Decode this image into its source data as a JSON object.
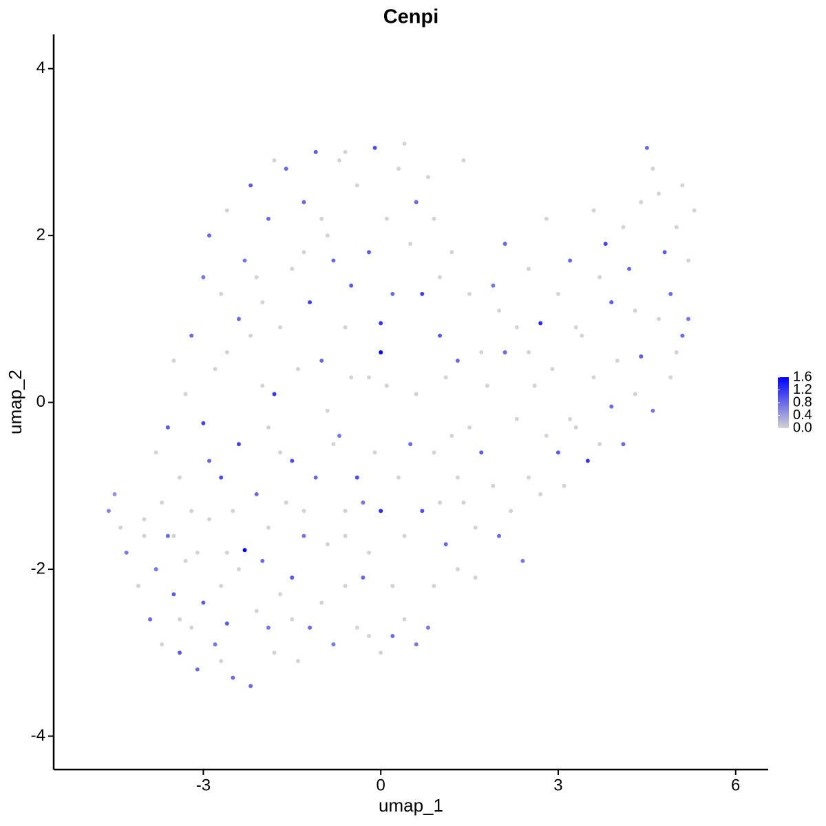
{
  "chart_data": {
    "type": "scatter",
    "title": "Cenpi",
    "x_label": "umap_1",
    "y_label": "umap_2",
    "x": [
      -4.6,
      -4.5,
      -4.4,
      -4.3,
      -4.1,
      -4.0,
      -3.9,
      -3.8,
      -3.7,
      -3.6,
      -3.5,
      -3.4,
      -3.3,
      -3.2,
      -3.1,
      -3.0,
      -2.9,
      -2.8,
      -2.7,
      -2.6,
      -2.5,
      -2.4,
      -2.3,
      -2.2,
      -2.1,
      -2.0,
      -1.9,
      -1.8,
      -1.7,
      -1.5,
      -1.4,
      -1.3,
      -1.2,
      -1.0,
      -0.8,
      -0.6,
      -0.4,
      -0.3,
      -0.2,
      0.0,
      0.2,
      0.4,
      0.6,
      0.8,
      0.9,
      1.1,
      1.3,
      1.6,
      2.0,
      2.4,
      -4.0,
      -3.7,
      -3.6,
      -3.4,
      -3.3,
      -3.0,
      -2.9,
      -2.8,
      -2.7,
      -2.5,
      -2.4,
      -2.2,
      -2.1,
      -2.0,
      -1.8,
      -1.7,
      -1.5,
      -1.4,
      -1.3,
      -1.1,
      -1.0,
      -0.9,
      -0.7,
      -0.6,
      -0.5,
      -0.4,
      -0.3,
      -0.1,
      0.0,
      0.1,
      0.3,
      0.5,
      0.7,
      0.9,
      1.1,
      1.3,
      1.5,
      1.7,
      1.9,
      2.1,
      2.3,
      2.5,
      2.8,
      3.0,
      3.1,
      3.3,
      3.5,
      3.7,
      3.9,
      4.1,
      4.3,
      4.6,
      4.9,
      5.1,
      5.2,
      -3.2,
      -3.0,
      -2.9,
      -2.7,
      -2.6,
      -2.4,
      -2.3,
      -2.2,
      -2.0,
      -1.9,
      -1.7,
      -1.6,
      -1.5,
      -1.3,
      -1.2,
      -1.1,
      -0.9,
      -0.8,
      -0.7,
      -0.5,
      -0.4,
      -0.2,
      -0.1,
      0.0,
      0.0,
      0.1,
      0.2,
      0.3,
      0.5,
      0.6,
      0.7,
      0.8,
      1.0,
      1.2,
      1.3,
      1.5,
      1.7,
      1.9,
      2.1,
      2.3,
      2.5,
      2.7,
      2.8,
      3.0,
      3.2,
      3.4,
      3.6,
      3.8,
      3.9,
      4.1,
      4.2,
      4.4,
      4.5,
      4.6,
      4.7,
      4.8,
      4.9,
      5.0,
      5.1,
      5.2,
      5.3,
      5.0,
      4.4,
      4.7,
      3.6,
      2.6,
      1.4,
      0.4,
      -0.6,
      -1.8,
      -2.6,
      -3.5,
      -3.8,
      -3.5,
      -3.1,
      -2.6,
      -1.9,
      -1.6,
      -0.9,
      -0.2,
      0.4,
      1.0,
      1.6,
      2.2,
      0.6,
      -0.2,
      1.8,
      2.9,
      3.3,
      2.0,
      1.0,
      -0.6,
      -1.3,
      -2.1,
      -1.0,
      0.9,
      3.7,
      4.3,
      4.0,
      3.2,
      2.5,
      1.2,
      -0.8,
      -1.9,
      -3.2,
      -2.7,
      -3.4,
      -1.5,
      0.2,
      -0.6,
      1.4,
      2.7
    ],
    "values": [
      -1.3,
      -1.1,
      -1.5,
      -1.8,
      -2.2,
      -1.6,
      -2.6,
      -2.0,
      -2.9,
      -1.6,
      -2.3,
      -3.0,
      -1.9,
      -2.7,
      -3.2,
      -2.4,
      -1.4,
      -2.9,
      -2.2,
      -2.65,
      -3.3,
      -2.0,
      -1.77,
      -3.4,
      -2.5,
      -1.9,
      -2.7,
      -3.0,
      -2.3,
      -2.1,
      -3.1,
      -1.6,
      -2.7,
      -2.4,
      -2.9,
      -2.2,
      -2.7,
      -2.1,
      -2.8,
      -3.0,
      -2.8,
      -2.6,
      -2.9,
      -2.7,
      -2.2,
      -1.7,
      -2.0,
      -2.1,
      -1.6,
      -1.9,
      -1.4,
      -1.2,
      -0.3,
      -0.9,
      0.1,
      -0.25,
      -0.7,
      0.4,
      -0.9,
      -1.3,
      -0.5,
      0.8,
      -1.1,
      0.2,
      0.1,
      -0.6,
      -0.7,
      0.4,
      -1.3,
      -0.9,
      0.5,
      -0.1,
      -0.4,
      -1.3,
      0.3,
      -0.9,
      -1.2,
      -0.6,
      -1.3,
      0.2,
      -0.9,
      -0.5,
      -1.3,
      -0.6,
      0.3,
      -0.9,
      -0.3,
      -0.6,
      -1.0,
      0.6,
      -0.2,
      -0.9,
      -0.4,
      -0.6,
      -1.0,
      -0.3,
      -0.7,
      -0.5,
      -0.05,
      -0.5,
      0.1,
      -0.1,
      0.3,
      0.8,
      1.0,
      0.8,
      1.5,
      2.0,
      1.3,
      2.3,
      1.0,
      1.7,
      2.6,
      1.2,
      2.2,
      0.9,
      2.8,
      1.6,
      2.4,
      1.2,
      3.0,
      2.0,
      1.7,
      2.9,
      1.4,
      2.6,
      1.8,
      3.05,
      0.95,
      0.6,
      2.2,
      1.3,
      2.8,
      1.9,
      2.4,
      1.3,
      2.7,
      0.8,
      1.8,
      0.5,
      1.3,
      0.6,
      1.4,
      1.9,
      0.9,
      1.6,
      0.95,
      2.2,
      1.3,
      1.7,
      0.8,
      2.3,
      1.9,
      1.2,
      2.1,
      1.6,
      2.4,
      3.05,
      2.8,
      2.5,
      1.8,
      1.3,
      2.1,
      2.6,
      1.7,
      2.3,
      0.6,
      0.55,
      1.0,
      0.3,
      0.2,
      2.9,
      3.1,
      3.0,
      2.9,
      0.6,
      0.5,
      -0.6,
      -1.6,
      -1.8,
      -1.8,
      -1.5,
      -1.2,
      -1.7,
      -1.8,
      -1.6,
      -1.2,
      -1.5,
      -1.3,
      0.1,
      0.3,
      0.2,
      0.4,
      0.9,
      1.1,
      1.5,
      0.9,
      1.8,
      1.5,
      2.2,
      2.2,
      1.5,
      1.1,
      0.5,
      -0.2,
      0.6,
      -0.4,
      -0.5,
      -0.3,
      -1.3,
      -3.1,
      -2.6,
      -2.6,
      -2.2,
      -1.6,
      -1.2,
      -1.1
    ],
    "expression": [
      0.6,
      0.5,
      0,
      0.7,
      0,
      0,
      0.8,
      0.7,
      0,
      0.8,
      0.9,
      0.9,
      0,
      0,
      0.8,
      0.9,
      0,
      0.7,
      0,
      0.9,
      0.8,
      0,
      1.6,
      0.8,
      0,
      0.8,
      0.7,
      0,
      0,
      0.9,
      0,
      0.7,
      0.8,
      0,
      0.7,
      0,
      0,
      0.8,
      0,
      0,
      0.8,
      0,
      0.7,
      0.7,
      0,
      0.8,
      0,
      0,
      0.8,
      0.7,
      0,
      0,
      0.9,
      0,
      0,
      1.1,
      0.8,
      0,
      1.0,
      0,
      1.1,
      0,
      0.8,
      0,
      1.2,
      0,
      1.0,
      0,
      0,
      0.8,
      0.8,
      0,
      0.7,
      0,
      0,
      1.0,
      0.7,
      0,
      1.3,
      0,
      0,
      0.8,
      1.0,
      0,
      0,
      0,
      0,
      0.9,
      0,
      0.8,
      0,
      0,
      0,
      0.9,
      0,
      0,
      1.2,
      0,
      0.8,
      0.8,
      0,
      0.7,
      0,
      0.8,
      0.7,
      0.8,
      0.7,
      0.8,
      0,
      0,
      0.8,
      0.7,
      0.9,
      0,
      0.8,
      0,
      0.8,
      0,
      0.8,
      1.1,
      0.9,
      0,
      0.8,
      0,
      0.9,
      0,
      0.9,
      1.0,
      1.2,
      1.6,
      0,
      0.8,
      0,
      0,
      0.8,
      1.1,
      0,
      0.9,
      0,
      0.8,
      0,
      0,
      0.7,
      0.8,
      0,
      0,
      1.3,
      0,
      0,
      0.8,
      0,
      0,
      1.1,
      0.9,
      0,
      0.8,
      0,
      0.8,
      0,
      0,
      0.9,
      0.8,
      0,
      0,
      0,
      0,
      0,
      0.9,
      0,
      0,
      0,
      0,
      0,
      0,
      0,
      0,
      0,
      0,
      0,
      0,
      0,
      0,
      0,
      0,
      0,
      0,
      0,
      0,
      0,
      0,
      0,
      0,
      0,
      0,
      0,
      0,
      0,
      0,
      0,
      0,
      0,
      0,
      0,
      0,
      0,
      0,
      0,
      0,
      0,
      0,
      0,
      0,
      0,
      0,
      0,
      0,
      0
    ],
    "xlim": [
      -5.53,
      6.55
    ],
    "ylim": [
      -4.4,
      4.41
    ],
    "xticks": [
      -3,
      0,
      3,
      6
    ],
    "yticks": [
      -4,
      -2,
      0,
      2,
      4
    ],
    "color_low": "#d3d3d3",
    "color_high": "#0000ff",
    "colorbar_lim": [
      0,
      1.6
    ],
    "colorbar_ticks": [
      {
        "value": 0,
        "label": "0.0"
      },
      0.4,
      0.8,
      1.2,
      1.6
    ]
  }
}
